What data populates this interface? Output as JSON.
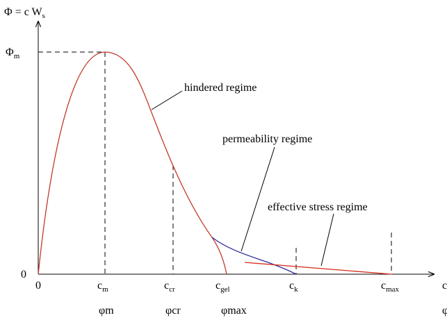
{
  "axes": {
    "y_label": {
      "base": "Φ = c W",
      "sub": "s"
    },
    "y_max": {
      "base": "Φ",
      "sub": "m"
    },
    "y_origin": "0",
    "x_origin": "0",
    "x_label": "c",
    "x_label_phi": "φ"
  },
  "x_marks": [
    {
      "c": {
        "base": "c",
        "sub": "m"
      },
      "phi": "φm"
    },
    {
      "c": {
        "base": "c",
        "sub": "cr"
      },
      "phi": "φcr"
    },
    {
      "c": {
        "base": "c",
        "sub": "gel"
      },
      "phi": "φmax"
    },
    {
      "c": {
        "base": "c",
        "sub": "k"
      }
    },
    {
      "c": {
        "base": "c",
        "sub": "max"
      }
    }
  ],
  "annotations": [
    "hindered regime",
    "permeability regime",
    "effective stress regime"
  ]
}
